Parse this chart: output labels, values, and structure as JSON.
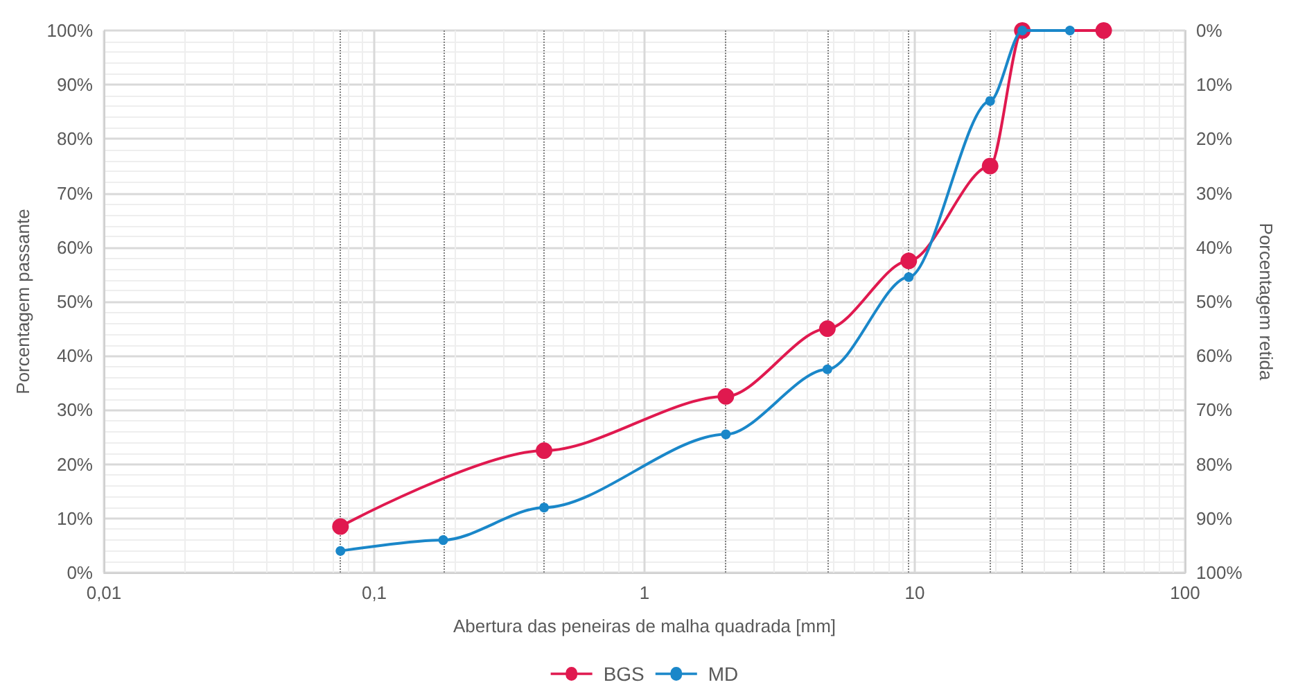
{
  "chart_data": {
    "type": "line",
    "xlabel": "Abertura das peneiras de malha quadrada [mm]",
    "ylabel": "Porcentagem passante",
    "y2label": "Porcentagem retida",
    "log": "x",
    "grid": true,
    "legend": "bottom",
    "marker": "circle",
    "line_style": "solid",
    "xlim": [
      0.01,
      100
    ],
    "xticks": [
      {
        "value": 0.01,
        "label": "0,01"
      },
      {
        "value": 0.1,
        "label": "0,1"
      },
      {
        "value": 1,
        "label": "1"
      },
      {
        "value": 10,
        "label": "10"
      },
      {
        "value": 100,
        "label": "100"
      }
    ],
    "ylim": [
      0,
      100
    ],
    "yticks": [
      {
        "value": 0,
        "label": "0%"
      },
      {
        "value": 10,
        "label": "10%"
      },
      {
        "value": 20,
        "label": "20%"
      },
      {
        "value": 30,
        "label": "30%"
      },
      {
        "value": 40,
        "label": "40%"
      },
      {
        "value": 50,
        "label": "50%"
      },
      {
        "value": 60,
        "label": "60%"
      },
      {
        "value": 70,
        "label": "70%"
      },
      {
        "value": 80,
        "label": "80%"
      },
      {
        "value": 90,
        "label": "90%"
      },
      {
        "value": 100,
        "label": "100%"
      }
    ],
    "y2lim": [
      100,
      0
    ],
    "y2ticks": [
      {
        "value": 0,
        "label": "0%"
      },
      {
        "value": 10,
        "label": "10%"
      },
      {
        "value": 20,
        "label": "20%"
      },
      {
        "value": 30,
        "label": "30%"
      },
      {
        "value": 40,
        "label": "40%"
      },
      {
        "value": 50,
        "label": "50%"
      },
      {
        "value": 60,
        "label": "60%"
      },
      {
        "value": 70,
        "label": "70%"
      },
      {
        "value": 80,
        "label": "80%"
      },
      {
        "value": 90,
        "label": "90%"
      },
      {
        "value": 100,
        "label": "100%"
      }
    ],
    "series": [
      {
        "name": "BGS",
        "color": "#e0194f",
        "x": [
          0.075,
          0.425,
          2,
          4.75,
          9.5,
          19,
          25,
          50
        ],
        "values": [
          8.5,
          22.5,
          32.5,
          45,
          57.5,
          75,
          100,
          100
        ]
      },
      {
        "name": "MD",
        "color": "#1a87c9",
        "x": [
          0.075,
          0.18,
          0.425,
          2,
          4.75,
          9.5,
          19,
          25,
          37.5
        ],
        "values": [
          4,
          6,
          12,
          25.5,
          37.5,
          54.5,
          87,
          100,
          100
        ]
      }
    ],
    "ref_lines": [
      {
        "axis": "x",
        "value": 0.075,
        "color": "#808080",
        "line_style": "dotted"
      },
      {
        "axis": "x",
        "value": 0.18,
        "color": "#808080",
        "line_style": "dotted"
      },
      {
        "axis": "x",
        "value": 0.425,
        "color": "#808080",
        "line_style": "dotted"
      },
      {
        "axis": "x",
        "value": 2,
        "color": "#808080",
        "line_style": "dotted"
      },
      {
        "axis": "x",
        "value": 4.75,
        "color": "#808080",
        "line_style": "dotted"
      },
      {
        "axis": "x",
        "value": 9.5,
        "color": "#808080",
        "line_style": "dotted"
      },
      {
        "axis": "x",
        "value": 19,
        "color": "#808080",
        "line_style": "dotted"
      },
      {
        "axis": "x",
        "value": 25,
        "color": "#808080",
        "line_style": "dotted"
      },
      {
        "axis": "x",
        "value": 37.5,
        "color": "#808080",
        "line_style": "dotted"
      },
      {
        "axis": "x",
        "value": 50,
        "color": "#808080",
        "line_style": "dotted"
      }
    ]
  }
}
